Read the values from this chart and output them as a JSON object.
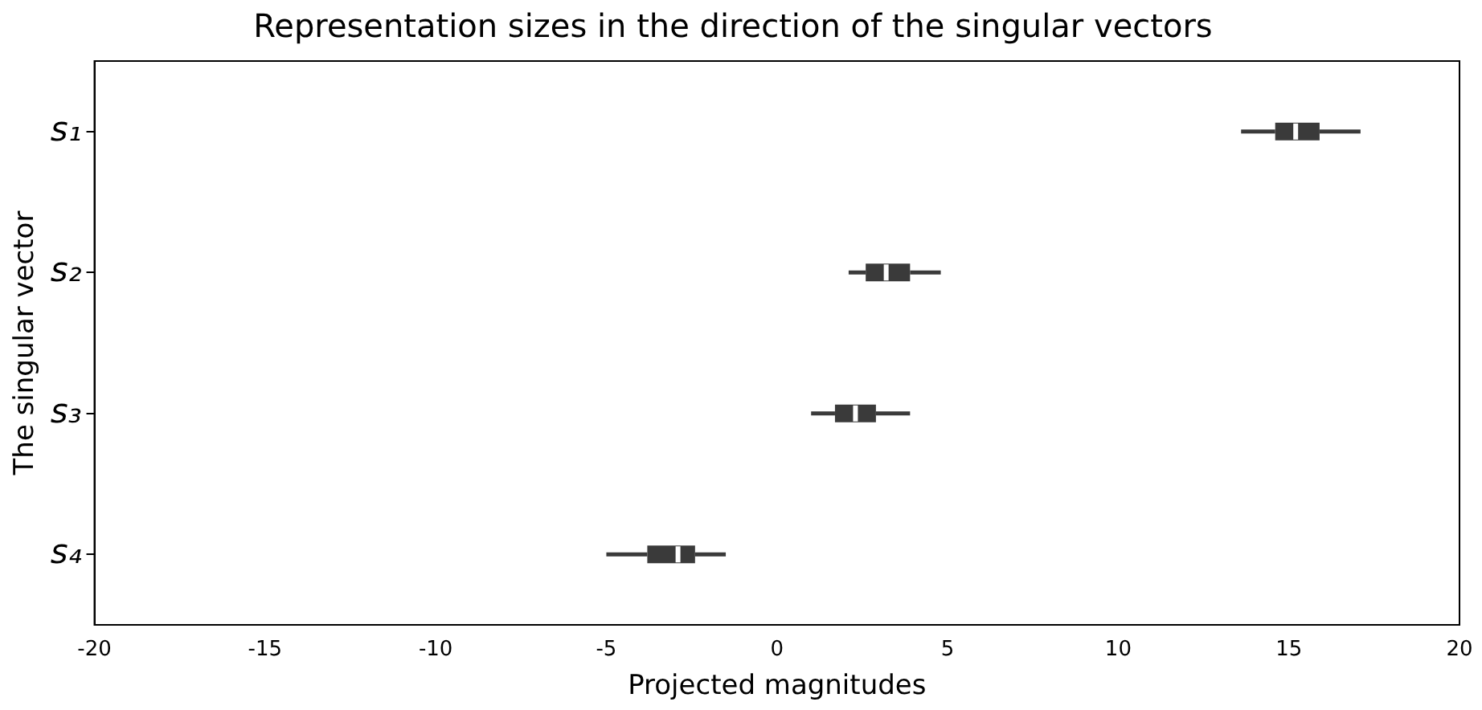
{
  "chart_data": {
    "type": "box",
    "orientation": "horizontal",
    "title": "Representation sizes in the direction of the singular vectors",
    "xlabel": "Projected magnitudes",
    "ylabel": "The singular vector",
    "categories": [
      "s₁",
      "s₂",
      "s₃",
      "s₄"
    ],
    "boxes": [
      {
        "low": 13.6,
        "q1": 14.6,
        "median": 15.2,
        "q3": 15.9,
        "high": 17.1
      },
      {
        "low": 2.1,
        "q1": 2.6,
        "median": 3.2,
        "q3": 3.9,
        "high": 4.8
      },
      {
        "low": 1.0,
        "q1": 1.7,
        "median": 2.3,
        "q3": 2.9,
        "high": 3.9
      },
      {
        "low": -5.0,
        "q1": -3.8,
        "median": -2.9,
        "q3": -2.4,
        "high": -1.5
      }
    ],
    "color": "#3a3a3a",
    "xlim": [
      -20,
      20
    ],
    "xticks": [
      -20,
      -15,
      -10,
      -5,
      0,
      5,
      10,
      15,
      20
    ],
    "grid": false,
    "legend": false
  }
}
